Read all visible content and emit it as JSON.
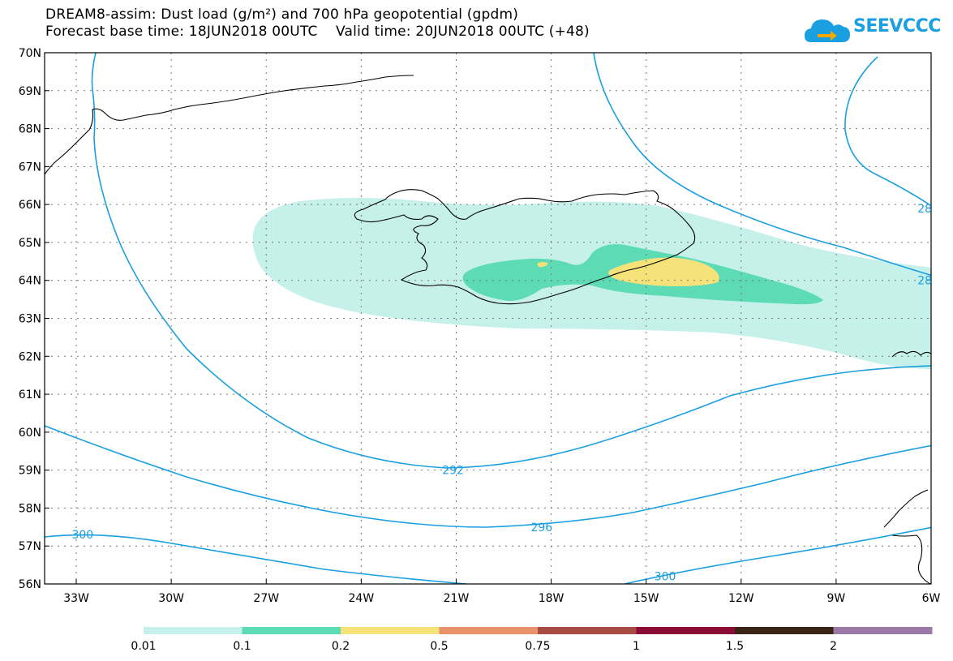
{
  "title": {
    "line1": "DREAM8-assim: Dust load (g/m²) and 700 hPa geopotential (gpdm)",
    "line2": "Forecast base time: 18JUN2018 00UTC    Valid time: 20JUN2018 00UTC (+48)"
  },
  "logo": {
    "text": "SEEVCCC",
    "icon": "cloud-arrow-icon"
  },
  "map": {
    "lon_ticks": [
      "33W",
      "30W",
      "27W",
      "24W",
      "21W",
      "18W",
      "15W",
      "12W",
      "9W",
      "6W"
    ],
    "lat_ticks": [
      "70N",
      "69N",
      "68N",
      "67N",
      "66N",
      "65N",
      "64N",
      "63N",
      "62N",
      "61N",
      "60N",
      "59N",
      "58N",
      "57N",
      "56N"
    ],
    "lon_range": [
      -34,
      -6
    ],
    "lat_range": [
      56,
      70
    ],
    "contour_labels": [
      {
        "text": "292",
        "lon": -21.1,
        "lat": 59.0
      },
      {
        "text": "296",
        "lon": -18.3,
        "lat": 57.5
      },
      {
        "text": "300",
        "lon": -32.8,
        "lat": 57.3
      },
      {
        "text": "300",
        "lon": -14.4,
        "lat": 56.2
      },
      {
        "text": "28",
        "lon": -6.2,
        "lat": 65.9
      },
      {
        "text": "28",
        "lon": -6.2,
        "lat": 64.0
      }
    ],
    "colors": {
      "contour": "#1a9fe0",
      "dust_01": "#c5f1ea",
      "dust_02": "#5ddbb5",
      "dust_05": "#f5e37a"
    }
  },
  "legend": {
    "labels": [
      "0.01",
      "0.1",
      "0.2",
      "0.5",
      "0.75",
      "1",
      "1.5",
      "2"
    ],
    "colors": [
      "#c5f1ea",
      "#5ddbb5",
      "#f5e37a",
      "#e8916a",
      "#a84b44",
      "#8c0b36",
      "#3a2418",
      "#9b79a6"
    ]
  }
}
